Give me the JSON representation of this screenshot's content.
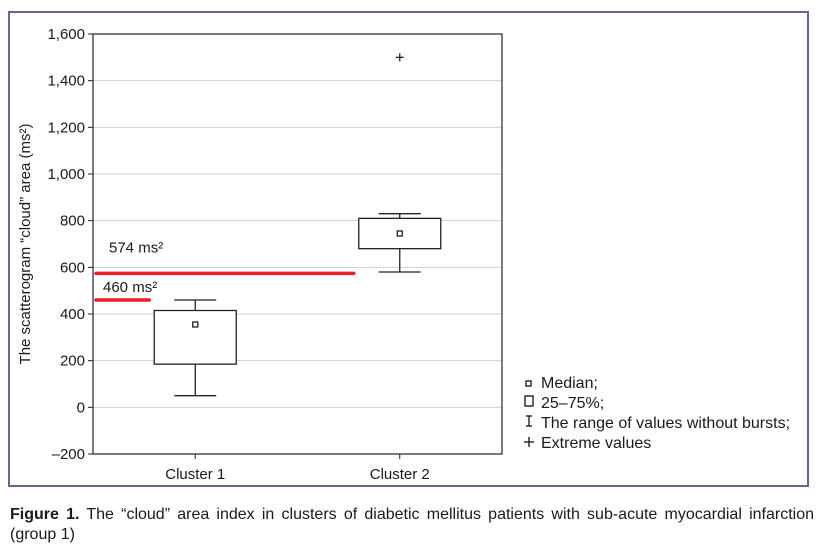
{
  "chart_data": {
    "type": "box",
    "ylabel": "The scatterogram “cloud” area (ms²)",
    "ylim": [
      -200,
      1600
    ],
    "yticks": [
      -200,
      0,
      200,
      400,
      600,
      800,
      1000,
      1200,
      1400,
      1600
    ],
    "ytick_labels": [
      "–200",
      "0",
      "200",
      "400",
      "600",
      "800",
      "1,000",
      "1,200",
      "1,400",
      "1,600"
    ],
    "grid": true,
    "categories": [
      "Cluster 1",
      "Cluster 2"
    ],
    "boxes": [
      {
        "category": "Cluster 1",
        "median": 355,
        "q1": 185,
        "q3": 415,
        "whisker_low": 50,
        "whisker_high": 460,
        "extremes": []
      },
      {
        "category": "Cluster 2",
        "median": 745,
        "q1": 680,
        "q3": 810,
        "whisker_low": 580,
        "whisker_high": 830,
        "extremes": [
          1500
        ]
      }
    ],
    "reference_lines": [
      {
        "value": 574,
        "label": "574 ms²",
        "color": "#e8202a"
      },
      {
        "value": 460,
        "label": "460 ms²",
        "color": "#e8202a"
      }
    ],
    "legend_position": "right-bottom"
  },
  "legend": [
    {
      "icon": "small-square-icon",
      "label": "Median;"
    },
    {
      "icon": "rectangle-icon",
      "label": "25–75%;"
    },
    {
      "icon": "whisker-icon",
      "label": "The range of values without bursts;"
    },
    {
      "icon": "plus-icon",
      "label": "Extreme values"
    }
  ],
  "caption": {
    "label": "Figure 1.",
    "text": " The “cloud” area index in clusters of diabetic mellitus patients with sub-acute myocardial infarction (group 1)"
  }
}
